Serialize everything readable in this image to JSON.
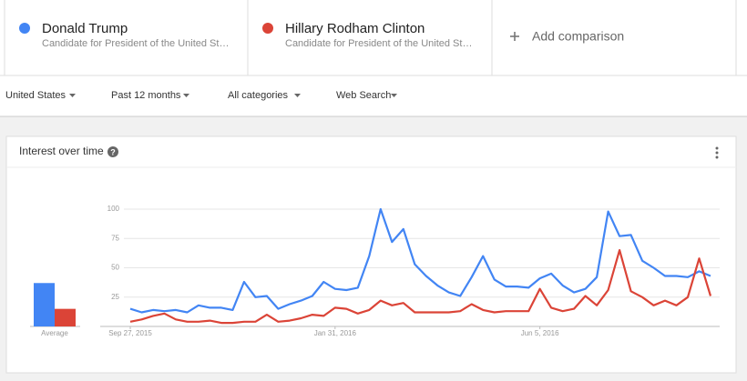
{
  "terms": [
    {
      "name": "Donald Trump",
      "subtitle": "Candidate for President of the United St…",
      "color": "#4285f4"
    },
    {
      "name": "Hillary Rodham Clinton",
      "subtitle": "Candidate for President of the United St…",
      "color": "#db4437"
    }
  ],
  "add_comparison": "Add comparison",
  "filters": [
    "United States",
    "Past 12 months",
    "All categories",
    "Web Search"
  ],
  "panel": {
    "title": "Interest over time",
    "help": "?"
  },
  "chart_data": [
    {
      "type": "bar",
      "categories": [
        "Average"
      ],
      "ylim": [
        0,
        100
      ],
      "series": [
        {
          "name": "Donald Trump",
          "color": "#4285f4",
          "values": [
            37
          ]
        },
        {
          "name": "Hillary Rodham Clinton",
          "color": "#db4437",
          "values": [
            15
          ]
        }
      ]
    },
    {
      "type": "line",
      "ylim": [
        0,
        100
      ],
      "yticks": [
        25,
        50,
        75,
        100
      ],
      "grid": true,
      "categories": [
        "Sep 27, 2015",
        null,
        null,
        null,
        null,
        null,
        null,
        null,
        null,
        null,
        null,
        null,
        null,
        null,
        null,
        null,
        null,
        null,
        "Jan 31, 2016",
        null,
        null,
        null,
        null,
        null,
        null,
        null,
        null,
        null,
        null,
        null,
        null,
        null,
        null,
        null,
        null,
        null,
        "Jun 5, 2016",
        null,
        null,
        null,
        null,
        null,
        null,
        null,
        null,
        null,
        null,
        null,
        null,
        null,
        null,
        null
      ],
      "series": [
        {
          "name": "Donald Trump",
          "color": "#4285f4",
          "values": [
            15,
            12,
            14,
            13,
            14,
            12,
            18,
            16,
            16,
            14,
            38,
            25,
            26,
            15,
            19,
            22,
            26,
            38,
            32,
            31,
            33,
            60,
            100,
            72,
            83,
            53,
            43,
            35,
            29,
            26,
            42,
            60,
            40,
            34,
            34,
            33,
            41,
            45,
            35,
            29,
            32,
            42,
            98,
            77,
            78,
            56,
            50,
            43,
            43,
            42,
            47,
            43
          ]
        },
        {
          "name": "Hillary Rodham Clinton",
          "color": "#db4437",
          "values": [
            4,
            6,
            9,
            11,
            6,
            4,
            4,
            5,
            3,
            3,
            4,
            4,
            10,
            4,
            5,
            7,
            10,
            9,
            16,
            15,
            11,
            14,
            22,
            18,
            20,
            12,
            12,
            12,
            12,
            13,
            19,
            14,
            12,
            13,
            13,
            13,
            32,
            16,
            13,
            15,
            26,
            18,
            31,
            65,
            30,
            25,
            18,
            22,
            18,
            25,
            58,
            26
          ]
        }
      ]
    }
  ]
}
